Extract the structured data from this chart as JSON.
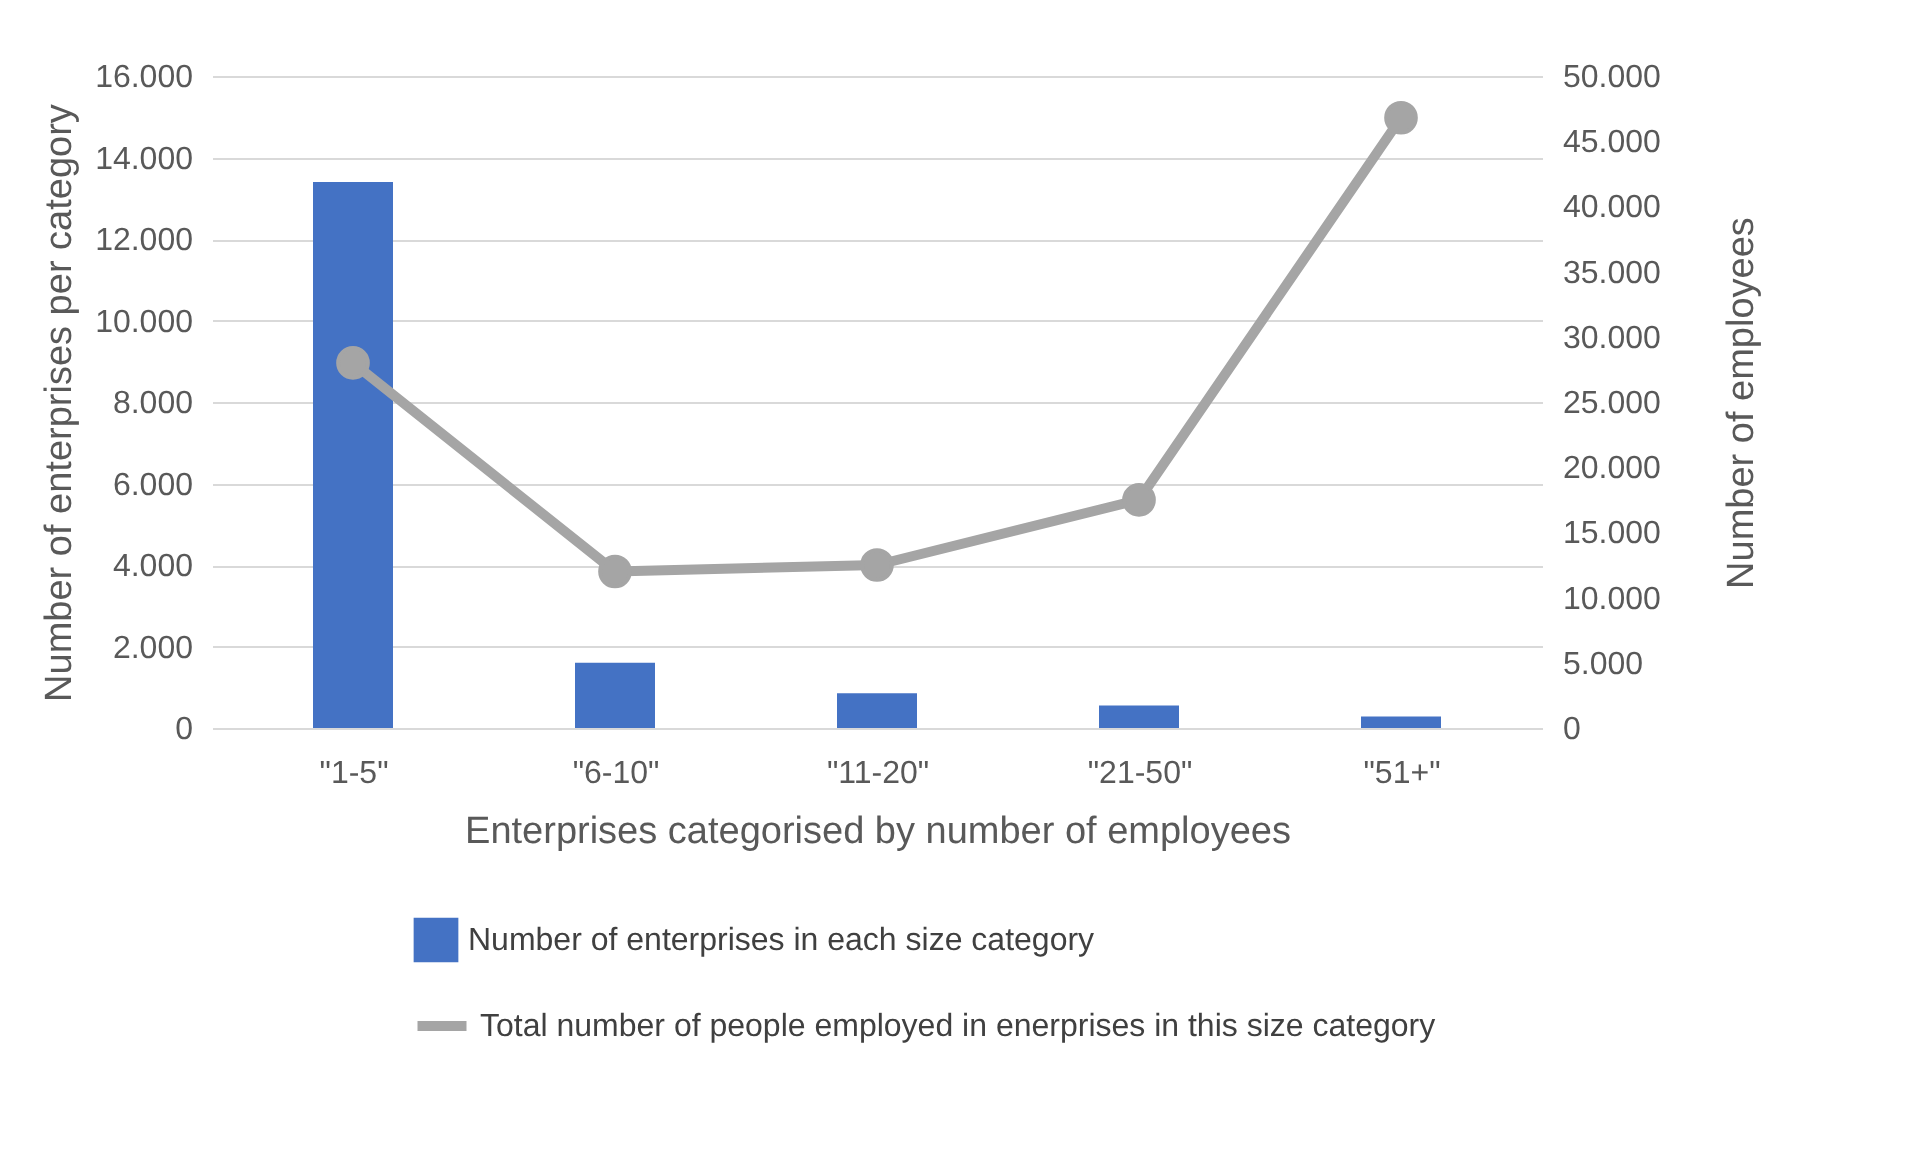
{
  "chart_data": {
    "type": "bar",
    "xlabel": "Enterprises categorised by number of employees",
    "ylabel": "Number of enterprises per category",
    "y2label": "Number of employees",
    "categories": [
      "\"1-5\"",
      "\"6-10\"",
      "\"11-20\"",
      "\"21-50\"",
      "\"51+\""
    ],
    "series": [
      {
        "name": "Number of enterprises in each size category",
        "color": "#4472c4",
        "values": [
          13400,
          1600,
          850,
          550,
          280
        ]
      },
      {
        "name": "Total number of people employed in enerprises in this size category",
        "type": "line",
        "axis": "y2",
        "color": "#a5a5a5",
        "marker": "circle",
        "values": [
          28000,
          12000,
          12500,
          17500,
          46800
        ]
      }
    ],
    "ylim": [
      0,
      16000
    ],
    "yticks": [
      {
        "value": 0,
        "label": "0"
      },
      {
        "value": 2000,
        "label": "2.000"
      },
      {
        "value": 4000,
        "label": "4.000"
      },
      {
        "value": 6000,
        "label": "6.000"
      },
      {
        "value": 8000,
        "label": "8.000"
      },
      {
        "value": 10000,
        "label": "10.000"
      },
      {
        "value": 12000,
        "label": "12.000"
      },
      {
        "value": 14000,
        "label": "14.000"
      },
      {
        "value": 16000,
        "label": "16.000"
      }
    ],
    "y2lim": [
      0,
      50000
    ],
    "y2ticks": [
      {
        "value": 0,
        "label": "0"
      },
      {
        "value": 5000,
        "label": "5.000"
      },
      {
        "value": 10000,
        "label": "10.000"
      },
      {
        "value": 15000,
        "label": "15.000"
      },
      {
        "value": 20000,
        "label": "20.000"
      },
      {
        "value": 25000,
        "label": "25.000"
      },
      {
        "value": 30000,
        "label": "30.000"
      },
      {
        "value": 35000,
        "label": "35.000"
      },
      {
        "value": 40000,
        "label": "40.000"
      },
      {
        "value": 45000,
        "label": "45.000"
      },
      {
        "value": 50000,
        "label": "50.000"
      }
    ],
    "grid": "y",
    "legend": "bottom"
  }
}
